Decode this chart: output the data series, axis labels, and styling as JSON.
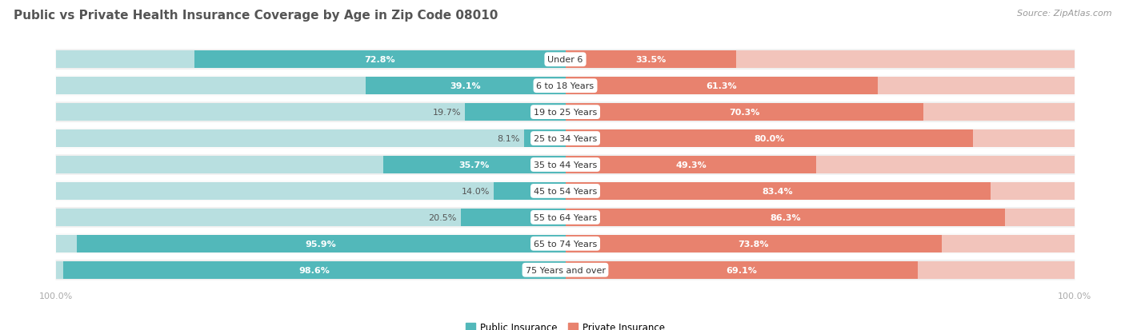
{
  "title": "Public vs Private Health Insurance Coverage by Age in Zip Code 08010",
  "source": "Source: ZipAtlas.com",
  "categories": [
    "Under 6",
    "6 to 18 Years",
    "19 to 25 Years",
    "25 to 34 Years",
    "35 to 44 Years",
    "45 to 54 Years",
    "55 to 64 Years",
    "65 to 74 Years",
    "75 Years and over"
  ],
  "public_values": [
    72.8,
    39.1,
    19.7,
    8.1,
    35.7,
    14.0,
    20.5,
    95.9,
    98.6
  ],
  "private_values": [
    33.5,
    61.3,
    70.3,
    80.0,
    49.3,
    83.4,
    86.3,
    73.8,
    69.1
  ],
  "public_color": "#52b8ba",
  "private_color": "#e8826e",
  "public_color_light": "#b8dfe0",
  "private_color_light": "#f2c4bb",
  "row_bg_odd": "#f0f0f0",
  "row_bg_even": "#fafafa",
  "title_color": "#555555",
  "source_color": "#999999",
  "axis_label_color": "#aaaaaa",
  "value_text_light": "#ffffff",
  "value_text_dark_pub": "#52b8ba",
  "value_text_dark_priv": "#e8826e",
  "max_value": 100.0,
  "figsize": [
    14.06,
    4.14
  ],
  "dpi": 100
}
